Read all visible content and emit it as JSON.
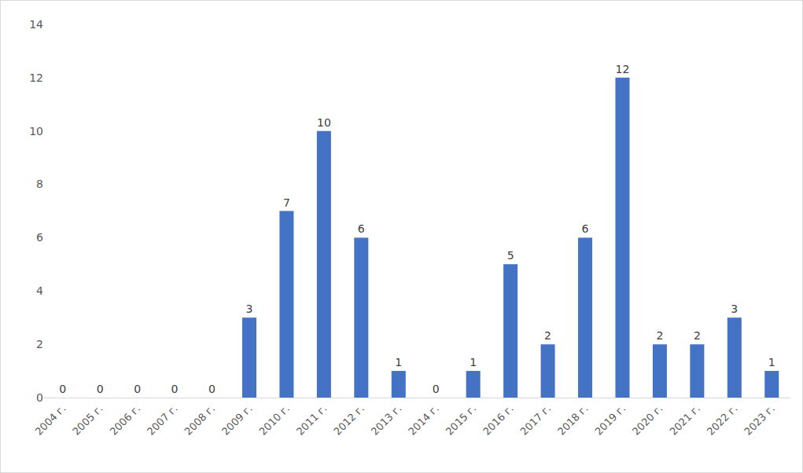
{
  "chart_data": {
    "type": "bar",
    "categories": [
      "2004 г.",
      "2005 г.",
      "2006 г.",
      "2007 г.",
      "2008 г.",
      "2009 г.",
      "2010 г.",
      "2011 г.",
      "2012 г.",
      "2013 г.",
      "2014 г.",
      "2015 г.",
      "2016 г.",
      "2017 г.",
      "2018 г.",
      "2019 г.",
      "2020 г.",
      "2021 г.",
      "2022 г.",
      "2023 г."
    ],
    "values": [
      0,
      0,
      0,
      0,
      0,
      3,
      7,
      10,
      6,
      1,
      0,
      1,
      5,
      2,
      6,
      12,
      2,
      2,
      3,
      1
    ],
    "color": "#4472c4",
    "ylim": [
      0,
      14
    ],
    "yticks": [
      0,
      2,
      4,
      6,
      8,
      10,
      12,
      14
    ],
    "grid": false,
    "data_labels": true
  }
}
